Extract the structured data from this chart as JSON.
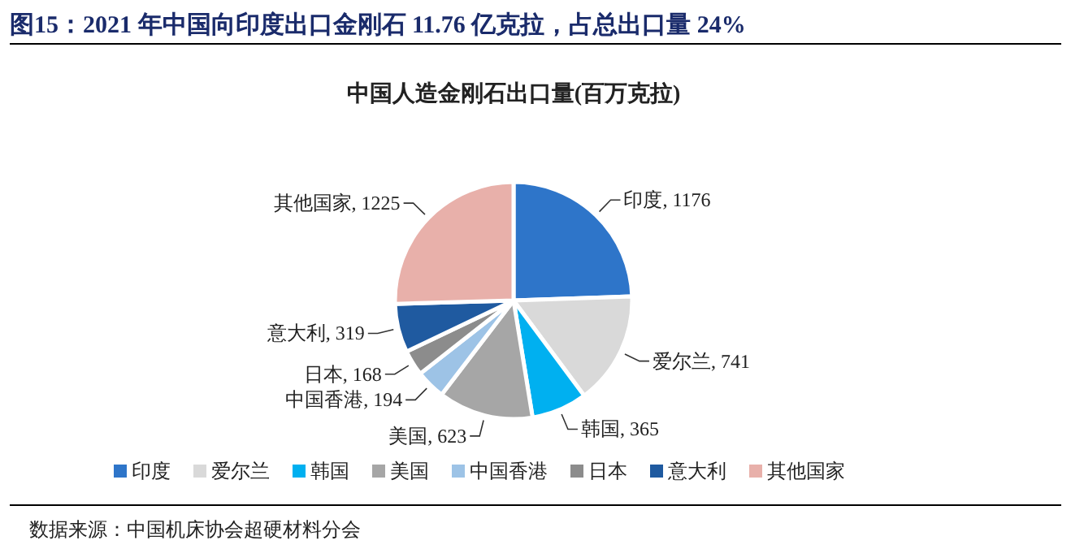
{
  "chart_data": {
    "type": "pie",
    "title": "图15：2021 年中国向印度出口金刚石 11.76 亿克拉，占总出口量 24%",
    "subtitle": "中国人造金刚石出口量(百万克拉)",
    "categories": [
      "印度",
      "爱尔兰",
      "韩国",
      "美国",
      "中国香港",
      "日本",
      "意大利",
      "其他国家"
    ],
    "values": [
      1176,
      741,
      365,
      623,
      194,
      168,
      319,
      1225
    ],
    "colors": [
      "#2e75c9",
      "#d9d9d9",
      "#00b0f0",
      "#a6a6a6",
      "#9dc3e6",
      "#8c8c8c",
      "#1f5aa0",
      "#e8b0aa"
    ],
    "value_labels": [
      ", 1176",
      ", 741",
      ", 365",
      ", 623",
      ", 194",
      ", 168",
      ", 319",
      ", 1225"
    ],
    "legend": "bottom",
    "annotations": [
      "数据来源：中国机床协会超硬材料分会"
    ]
  }
}
